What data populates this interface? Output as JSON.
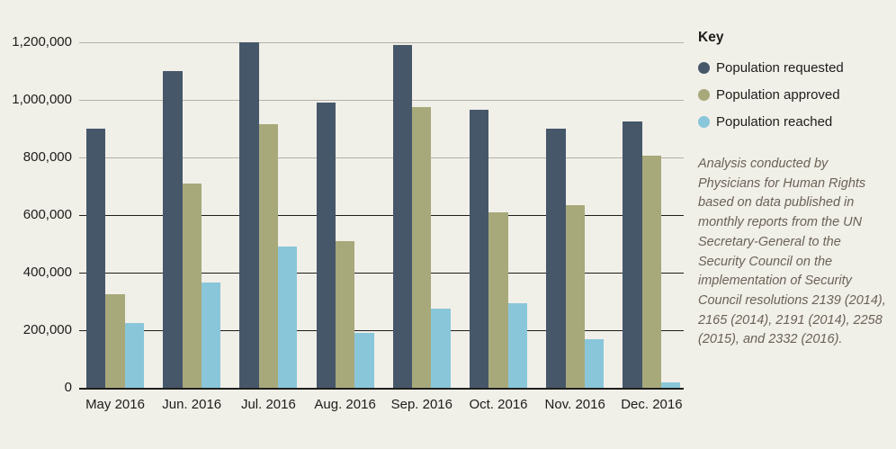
{
  "page": {
    "background_color": "#f0efe8",
    "text_color": "#1d1d1b",
    "note_text_color": "#6b6257",
    "gridline_light_color": "#b4b1a9",
    "gridline_dark_color": "#1d1d1b",
    "axis_color": "#1d1d1b"
  },
  "legend": {
    "title": "Key",
    "items": [
      {
        "label": "Population requested",
        "color": "#46576a"
      },
      {
        "label": "Population approved",
        "color": "#a8a97b"
      },
      {
        "label": "Population reached",
        "color": "#8ac6da"
      }
    ]
  },
  "note": "Analysis conducted by Physicians for Human Rights based on data published in monthly reports from the UN Secretary-General to the Security Council on the implementation of Security Council resolutions 2139 (2014), 2165 (2014), 2191 (2014), 2258 (2015), and 2332 (2016).",
  "chart_data": {
    "type": "bar",
    "categories": [
      "May 2016",
      "Jun. 2016",
      "Jul. 2016",
      "Aug. 2016",
      "Sep. 2016",
      "Oct. 2016",
      "Nov. 2016",
      "Dec. 2016"
    ],
    "series": [
      {
        "name": "Population requested",
        "color": "#46576a",
        "values": [
          900000,
          1100000,
          1200000,
          990000,
          1190000,
          965000,
          900000,
          925000
        ]
      },
      {
        "name": "Population approved",
        "color": "#a8a97b",
        "values": [
          325000,
          710000,
          915000,
          510000,
          975000,
          610000,
          635000,
          805000
        ]
      },
      {
        "name": "Population reached",
        "color": "#8ac6da",
        "values": [
          225000,
          365000,
          490000,
          190000,
          275000,
          295000,
          170000,
          20000
        ]
      }
    ],
    "ylim": [
      0,
      1200000
    ],
    "ytick_interval": 200000,
    "yticks": [
      {
        "value": 0,
        "label": "0",
        "shade": "baseline"
      },
      {
        "value": 200000,
        "label": "200,000",
        "shade": "dark"
      },
      {
        "value": 400000,
        "label": "400,000",
        "shade": "dark"
      },
      {
        "value": 600000,
        "label": "600,000",
        "shade": "dark"
      },
      {
        "value": 800000,
        "label": "800,000",
        "shade": "light"
      },
      {
        "value": 1000000,
        "label": "1,000,000",
        "shade": "light"
      },
      {
        "value": 1200000,
        "label": "1,200,000",
        "shade": "light"
      }
    ],
    "grid": "horizontal",
    "legend_position": "right"
  }
}
